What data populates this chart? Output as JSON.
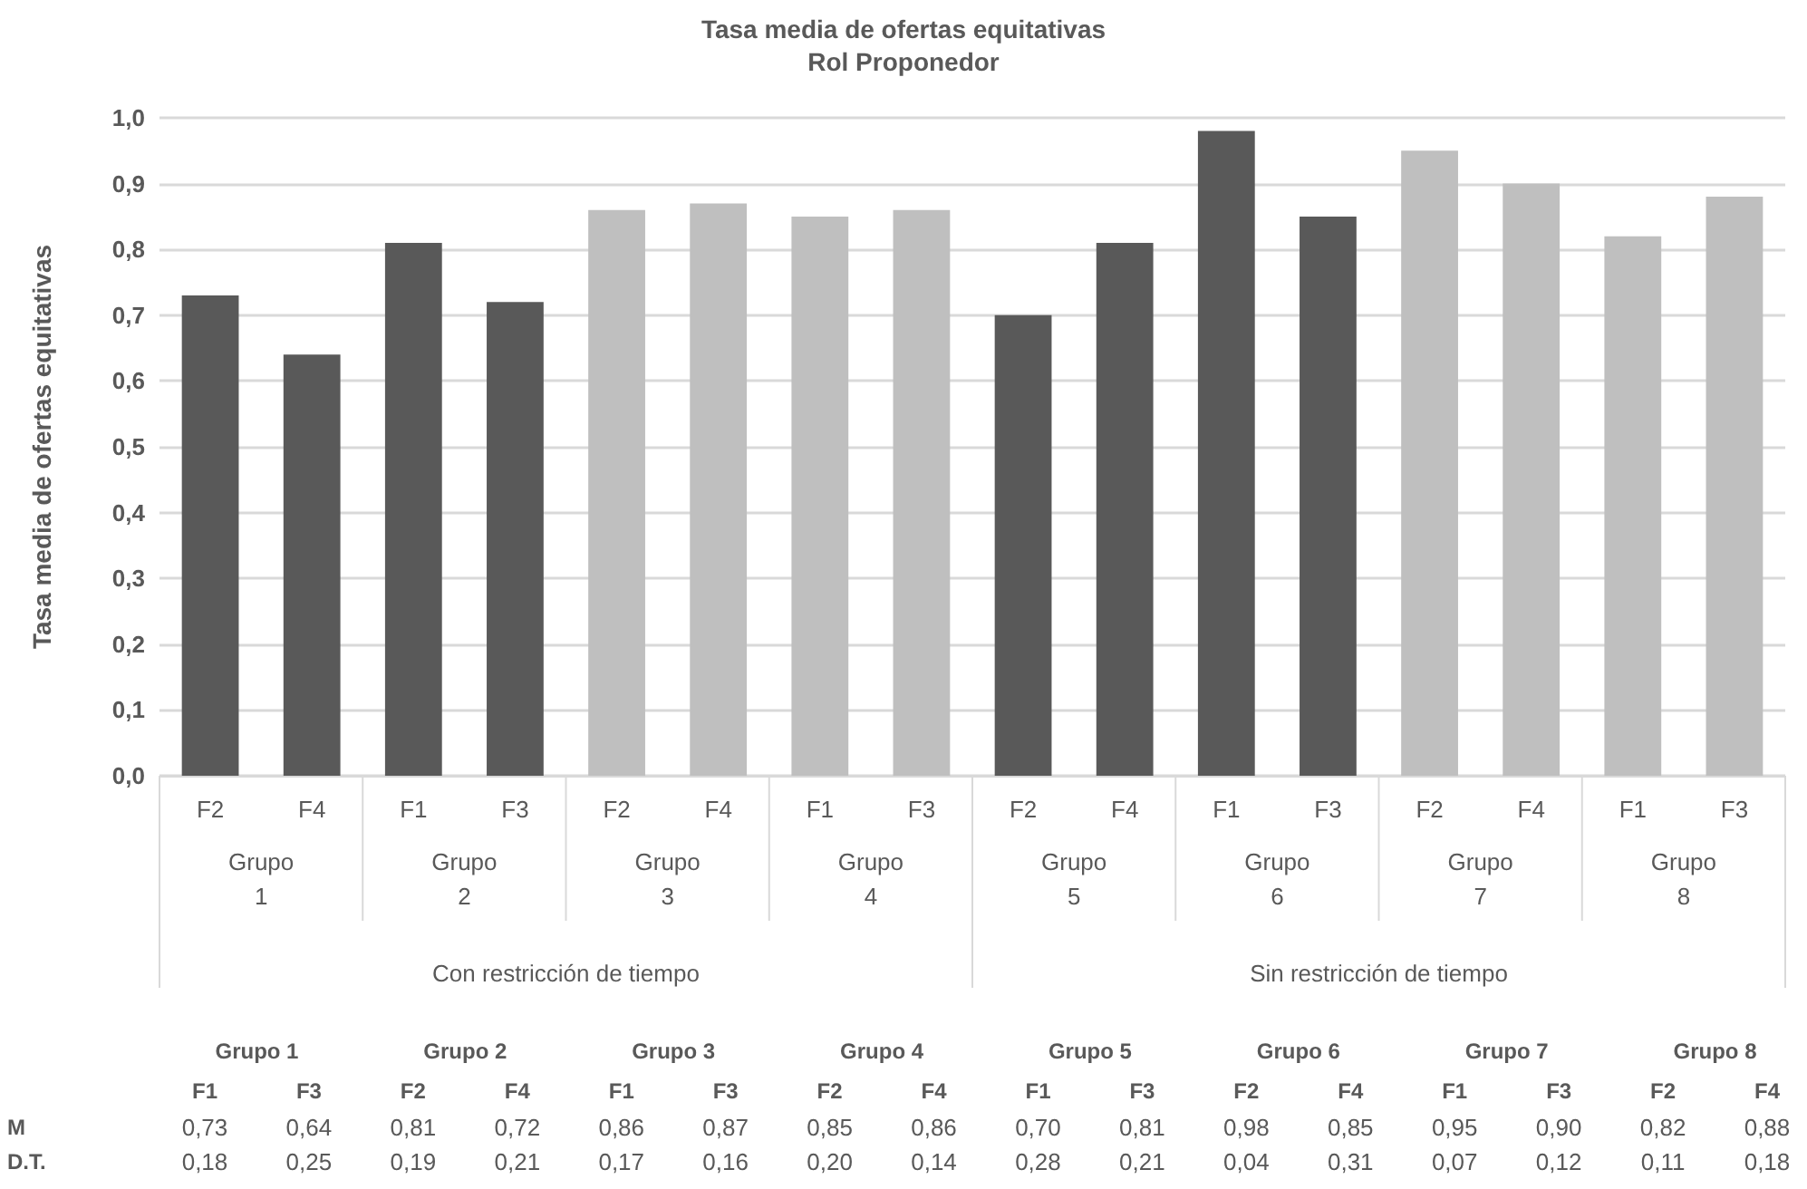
{
  "chart_data": {
    "type": "bar",
    "title": "Tasa media de ofertas equitativas",
    "subtitle": "Rol Proponedor",
    "ylabel": "Tasa media de ofertas equitativas",
    "categories": [
      "F2",
      "F4",
      "F1",
      "F3",
      "F2",
      "F4",
      "F1",
      "F3",
      "F2",
      "F4",
      "F1",
      "F3",
      "F2",
      "F4",
      "F1",
      "F3"
    ],
    "values": [
      0.73,
      0.64,
      0.81,
      0.72,
      0.86,
      0.87,
      0.85,
      0.86,
      0.7,
      0.81,
      0.98,
      0.85,
      0.95,
      0.9,
      0.82,
      0.88
    ],
    "colors": [
      "#595959",
      "#595959",
      "#595959",
      "#595959",
      "#bfbfbf",
      "#bfbfbf",
      "#bfbfbf",
      "#bfbfbf",
      "#595959",
      "#595959",
      "#595959",
      "#595959",
      "#bfbfbf",
      "#bfbfbf",
      "#bfbfbf",
      "#bfbfbf"
    ],
    "value_labels": [
      "0,73",
      "0,64",
      "0,81",
      "0,72",
      "0,86",
      "0,87",
      "0,85",
      "0,86",
      "0,70",
      "0,81",
      "0,98",
      "0,85",
      "0,95",
      "0,90",
      "0,82",
      "0,88"
    ],
    "ylim": [
      0,
      1
    ],
    "yticks": [
      {
        "value": 0,
        "label": "0,0"
      },
      {
        "value": 0.1,
        "label": "0,1"
      },
      {
        "value": 0.2,
        "label": "0,2"
      },
      {
        "value": 0.3,
        "label": "0,3"
      },
      {
        "value": 0.4,
        "label": "0,4"
      },
      {
        "value": 0.5,
        "label": "0,5"
      },
      {
        "value": 0.6,
        "label": "0,6"
      },
      {
        "value": 0.7,
        "label": "0,7"
      },
      {
        "value": 0.8,
        "label": "0,8"
      },
      {
        "value": 0.9,
        "label": "0,9"
      },
      {
        "value": 1,
        "label": "1,0"
      }
    ],
    "grid": "y",
    "annotations": [
      "Grupo 1",
      "Grupo 2",
      "Grupo 3",
      "Grupo 4",
      "Grupo 5",
      "Grupo 6",
      "Grupo 7",
      "Grupo 8",
      "Con restricción de tiempo",
      "Sin restricción de tiempo",
      "Grupo 1",
      "Grupo 2",
      "Grupo 3",
      "Grupo 4",
      "Grupo 5",
      "Grupo 6",
      "Grupo 7",
      "Grupo 8",
      "F1",
      "F3",
      "F2",
      "F4",
      "F1",
      "F3",
      "F2",
      "F4",
      "F1",
      "F3",
      "F2",
      "F4",
      "F1",
      "F3",
      "F2",
      "F4",
      "M",
      "D.T.",
      "0,18",
      "0,25",
      "0,19",
      "0,21",
      "0,17",
      "0,16",
      "0,20",
      "0,14",
      "0,28",
      "0,21",
      "0,04",
      "0,31",
      "0,07",
      "0,12",
      "0,11",
      "0,18"
    ]
  }
}
